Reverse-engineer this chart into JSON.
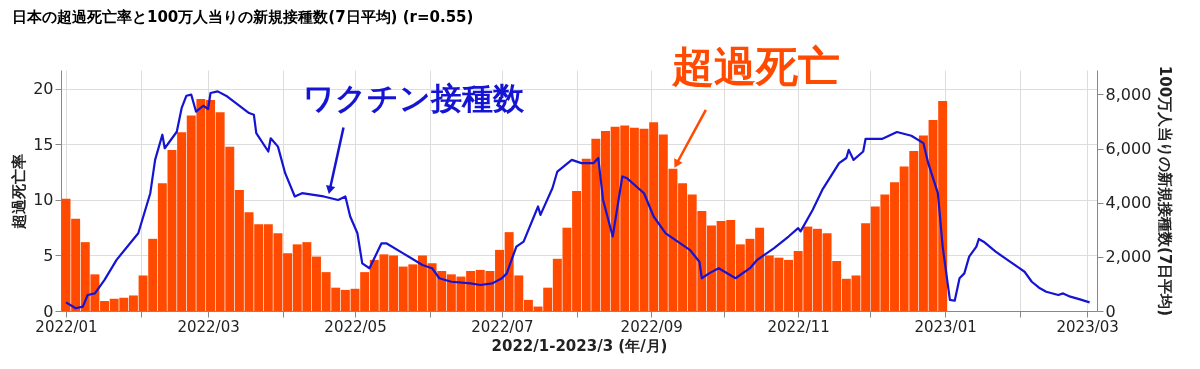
{
  "chart_data": {
    "type": "bar",
    "title": "日本の超過死亡率と100万人当りの新規接種数(7日平均) (r=0.55)",
    "xlabel": "2022/1-2023/3 (年/月)",
    "ylabel": "超過死亡率",
    "y2label": "100万人当りの新規接種数(7日平均)",
    "xlim": [
      "2022-01-01",
      "2023-03-03"
    ],
    "xticks": [
      {
        "value": "2022-01-01",
        "label": "2022/01"
      },
      {
        "value": "2022-02-01",
        "label": null
      },
      {
        "value": "2022-03-01",
        "label": "2022/03"
      },
      {
        "value": "2022-04-01",
        "label": null
      },
      {
        "value": "2022-05-01",
        "label": "2022/05"
      },
      {
        "value": "2022-06-01",
        "label": null
      },
      {
        "value": "2022-07-01",
        "label": "2022/07"
      },
      {
        "value": "2022-08-01",
        "label": null
      },
      {
        "value": "2022-09-01",
        "label": "2022/09"
      },
      {
        "value": "2022-10-01",
        "label": null
      },
      {
        "value": "2022-11-01",
        "label": "2022/11"
      },
      {
        "value": "2022-12-01",
        "label": null
      },
      {
        "value": "2023-01-01",
        "label": "2023/01"
      },
      {
        "value": "2023-02-01",
        "label": null
      },
      {
        "value": "2023-03-01",
        "label": "2023/03"
      }
    ],
    "ylim": [
      0,
      21.7
    ],
    "yticks": [
      0,
      5,
      10,
      15,
      20
    ],
    "y2lim": [
      0,
      8900
    ],
    "y2ticks": [
      0,
      {
        "value": 2000,
        "label": "2,000"
      },
      {
        "value": 4000,
        "label": "4,000"
      },
      {
        "value": 6000,
        "label": "6,000"
      },
      {
        "value": 8000,
        "label": "8,000"
      }
    ],
    "grid": true,
    "legend": false,
    "annotations": [
      {
        "text": "ワクチン接種数",
        "x": "2022-04-21",
        "y": 10.4
      },
      {
        "text": "超過死亡",
        "x": "2022-09-10",
        "y": 12.8
      }
    ],
    "series": [
      {
        "color": "#ff4a00",
        "x": [
          "2022-01-01",
          "2022-01-05",
          "2022-01-09",
          "2022-01-13",
          "2022-01-17",
          "2022-01-21",
          "2022-01-25",
          "2022-01-29",
          "2022-02-02",
          "2022-02-06",
          "2022-02-10",
          "2022-02-14",
          "2022-02-18",
          "2022-02-22",
          "2022-02-26",
          "2022-03-02",
          "2022-03-06",
          "2022-03-10",
          "2022-03-14",
          "2022-03-18",
          "2022-03-22",
          "2022-03-26",
          "2022-03-30",
          "2022-04-03",
          "2022-04-07",
          "2022-04-11",
          "2022-04-15",
          "2022-04-19",
          "2022-04-23",
          "2022-04-27",
          "2022-05-01",
          "2022-05-05",
          "2022-05-09",
          "2022-05-13",
          "2022-05-17",
          "2022-05-21",
          "2022-05-25",
          "2022-05-29",
          "2022-06-02",
          "2022-06-06",
          "2022-06-10",
          "2022-06-14",
          "2022-06-18",
          "2022-06-22",
          "2022-06-26",
          "2022-06-30",
          "2022-07-04",
          "2022-07-08",
          "2022-07-12",
          "2022-07-16",
          "2022-07-20",
          "2022-07-24",
          "2022-07-28",
          "2022-08-01",
          "2022-08-05",
          "2022-08-09",
          "2022-08-13",
          "2022-08-17",
          "2022-08-21",
          "2022-08-25",
          "2022-08-29",
          "2022-09-02",
          "2022-09-06",
          "2022-09-10",
          "2022-09-14",
          "2022-09-18",
          "2022-09-22",
          "2022-09-26",
          "2022-09-30",
          "2022-10-04",
          "2022-10-08",
          "2022-10-12",
          "2022-10-16",
          "2022-10-20",
          "2022-10-24",
          "2022-10-28",
          "2022-11-01",
          "2022-11-05",
          "2022-11-09",
          "2022-11-13",
          "2022-11-17",
          "2022-11-21",
          "2022-11-25",
          "2022-11-29",
          "2022-12-03",
          "2022-12-07",
          "2022-12-11",
          "2022-12-15",
          "2022-12-19",
          "2022-12-23",
          "2022-12-27",
          "2022-12-31"
        ],
        "values": [
          10.1,
          8.3,
          6.2,
          3.3,
          0.9,
          1.1,
          1.2,
          1.4,
          3.2,
          6.5,
          11.5,
          14.5,
          16.1,
          17.6,
          19.1,
          19.0,
          17.9,
          14.8,
          10.9,
          8.9,
          7.8,
          7.8,
          7.0,
          5.2,
          6.0,
          6.2,
          4.9,
          3.5,
          2.1,
          1.9,
          2.0,
          3.5,
          4.6,
          5.1,
          5.0,
          4.0,
          4.2,
          5.0,
          4.3,
          3.6,
          3.3,
          3.1,
          3.6,
          3.7,
          3.6,
          5.5,
          7.1,
          3.2,
          1.0,
          0.4,
          2.1,
          4.7,
          7.5,
          10.8,
          13.7,
          15.5,
          16.2,
          16.6,
          16.7,
          16.5,
          16.4,
          17.0,
          15.9,
          12.8,
          11.5,
          10.5,
          9.0,
          7.7,
          8.1,
          8.2,
          6.0,
          6.5,
          7.5,
          5.0,
          4.8,
          4.6,
          5.4,
          7.6,
          7.4,
          7.0,
          4.5,
          2.9,
          3.2,
          7.9,
          9.4,
          10.5,
          11.6,
          13.0,
          14.4,
          15.8,
          17.2,
          18.9
        ]
      },
      {
        "type": "line",
        "axis": "y2",
        "color": "#1414d2",
        "x": [
          "2022-01-01",
          "2022-01-05",
          "2022-01-08",
          "2022-01-10",
          "2022-01-13",
          "2022-01-17",
          "2022-01-22",
          "2022-01-31",
          "2022-02-05",
          "2022-02-07",
          "2022-02-10",
          "2022-02-11",
          "2022-02-16",
          "2022-02-18",
          "2022-02-20",
          "2022-02-22",
          "2022-02-24",
          "2022-02-27",
          "2022-03-01",
          "2022-03-02",
          "2022-03-05",
          "2022-03-09",
          "2022-03-18",
          "2022-03-20",
          "2022-03-21",
          "2022-03-26",
          "2022-03-27",
          "2022-03-30",
          "2022-04-02",
          "2022-04-06",
          "2022-04-09",
          "2022-04-18",
          "2022-04-24",
          "2022-04-27",
          "2022-04-29",
          "2022-05-02",
          "2022-05-04",
          "2022-05-07",
          "2022-05-12",
          "2022-05-14",
          "2022-05-21",
          "2022-05-29",
          "2022-06-02",
          "2022-06-05",
          "2022-06-10",
          "2022-06-18",
          "2022-06-22",
          "2022-06-27",
          "2022-07-01",
          "2022-07-03",
          "2022-07-07",
          "2022-07-10",
          "2022-07-16",
          "2022-07-17",
          "2022-07-22",
          "2022-07-24",
          "2022-07-30",
          "2022-08-03",
          "2022-08-08",
          "2022-08-10",
          "2022-08-12",
          "2022-08-16",
          "2022-08-20",
          "2022-08-22",
          "2022-08-29",
          "2022-09-02",
          "2022-09-07",
          "2022-09-17",
          "2022-09-21",
          "2022-09-22",
          "2022-09-25",
          "2022-09-29",
          "2022-10-06",
          "2022-10-12",
          "2022-10-15",
          "2022-10-22",
          "2022-10-28",
          "2022-11-01",
          "2022-11-02",
          "2022-11-07",
          "2022-11-11",
          "2022-11-18",
          "2022-11-21",
          "2022-11-22",
          "2022-11-24",
          "2022-11-28",
          "2022-11-29",
          "2022-12-06",
          "2022-12-12",
          "2022-12-18",
          "2022-12-23",
          "2022-12-25",
          "2022-12-29",
          "2022-12-31",
          "2023-01-03",
          "2023-01-05",
          "2023-01-07",
          "2023-01-09",
          "2023-01-11",
          "2023-01-14",
          "2023-01-15",
          "2023-01-17",
          "2023-01-22",
          "2023-01-29",
          "2023-02-03",
          "2023-02-06",
          "2023-02-09",
          "2023-02-12",
          "2023-02-17",
          "2023-02-19",
          "2023-02-22",
          "2023-02-26",
          "2023-03-02"
        ],
        "values": [
          320,
          100,
          160,
          590,
          650,
          1150,
          1890,
          2870,
          4350,
          5580,
          6510,
          6010,
          6620,
          7490,
          7950,
          7990,
          7360,
          7580,
          7460,
          8050,
          8110,
          7920,
          7310,
          7250,
          6570,
          5890,
          6380,
          6070,
          5090,
          4230,
          4350,
          4230,
          4100,
          4230,
          3490,
          2870,
          1760,
          1580,
          2500,
          2500,
          2130,
          1700,
          1580,
          1210,
          1080,
          1020,
          960,
          1020,
          1210,
          1390,
          2380,
          2560,
          3860,
          3550,
          4540,
          5150,
          5580,
          5460,
          5460,
          5650,
          4100,
          2750,
          4970,
          4900,
          4350,
          3490,
          2870,
          2260,
          1820,
          1210,
          1390,
          1580,
          1210,
          1580,
          1890,
          2320,
          2750,
          3060,
          2940,
          3730,
          4470,
          5460,
          5650,
          5950,
          5580,
          5890,
          6360,
          6360,
          6610,
          6470,
          6200,
          5460,
          4350,
          2380,
          410,
          380,
          1210,
          1390,
          2010,
          2380,
          2660,
          2560,
          2190,
          1760,
          1450,
          1080,
          860,
          710,
          590,
          650,
          530,
          430,
          320
        ]
      }
    ]
  }
}
